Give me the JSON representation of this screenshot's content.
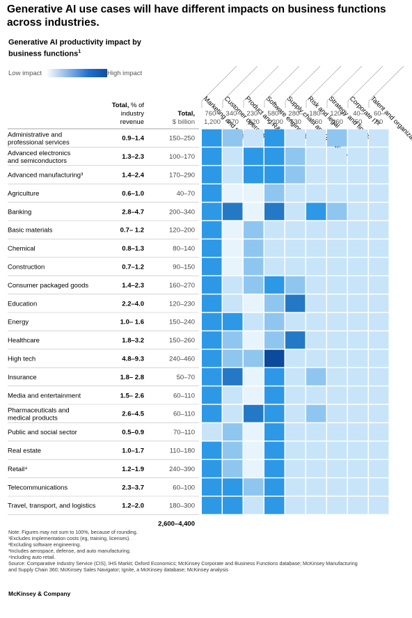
{
  "title": "Generative AI use cases will have different impacts on business functions across industries.",
  "subtitle": "Generative AI productivity impact by business functions",
  "subtitle_note": "1",
  "legend": {
    "low": "Low impact",
    "high": "High impact",
    "low_color": "#ffffff",
    "high_color": "#134e9d"
  },
  "column_heads": {
    "pct_title": "Total,",
    "pct_rest": "% of",
    "pct_line2": "industry",
    "pct_line3": "revenue",
    "bn_title": "Total,",
    "bn_line2": "$ billion"
  },
  "grand_total": "2,600–4,400",
  "notes": [
    "Note: Figures may not sum to 100%, because of rounding.",
    "¹Excludes implementation costs (eg, training, licenses).",
    "²Excluding software engineering.",
    "³Includes aerospace, defense, and auto manufacturing.",
    "⁴Including auto retail.",
    "Source: Comparative Industry Service (CIS), IHS Markit; Oxford Economics; McKinsey Corporate and Business Functions database; McKinsey Manufacturing",
    "and Supply Chain 360; McKinsey Sales Navigator; Ignite, a McKinsey database; McKinsey analysis"
  ],
  "brand": "McKinsey & Company",
  "chart_data": {
    "type": "heatmap",
    "value_scale": "relative impact level 0 (low) to 5 (high), estimated from cell shading",
    "functions": [
      {
        "name": "Marketing and sales",
        "total_top": "760–",
        "total_bottom": "1,200"
      },
      {
        "name": "Customer operations",
        "total_top": "340–",
        "total_bottom": "470"
      },
      {
        "name": "Product and R&D",
        "total_top": "230–",
        "total_bottom": "420"
      },
      {
        "name": "Software engineering",
        "total_top": "580–",
        "total_bottom": "1,200"
      },
      {
        "name": "Supply chain and operations",
        "total_top": "280–",
        "total_bottom": "530"
      },
      {
        "name": "Risk and legal",
        "total_top": "180–",
        "total_bottom": "260"
      },
      {
        "name": "Strategy and finance",
        "total_top": "120–",
        "total_bottom": "260"
      },
      {
        "name": "Corporate IT²",
        "total_top": "40–",
        "total_bottom": "50"
      },
      {
        "name": "Talent and organization",
        "total_top": "60–",
        "total_bottom": "90"
      }
    ],
    "industries": [
      {
        "name": "Administrative and professional services",
        "line1": "Administrative and",
        "line2": "professional services",
        "pct": "0.9–1.4",
        "bn": "150–250",
        "impact": [
          3,
          2,
          1,
          3,
          1,
          1,
          2,
          1,
          1
        ]
      },
      {
        "name": "Advanced electronics and semiconductors",
        "line1": "Advanced electronics",
        "line2": "and semiconductors",
        "pct": "1.3–2.3",
        "bn": "100–170",
        "impact": [
          3,
          1,
          3,
          3,
          2,
          1,
          1,
          1,
          1
        ]
      },
      {
        "name": "Advanced manufacturing³",
        "line1": "Advanced manufacturing³",
        "line2": "",
        "pct": "1.4–2.4",
        "bn": "170–290",
        "impact": [
          3,
          1,
          3,
          3,
          2,
          1,
          1,
          1,
          1
        ]
      },
      {
        "name": "Agriculture",
        "line1": "Agriculture",
        "line2": "",
        "pct": "0.6–1.0",
        "bn": "40–70",
        "impact": [
          3,
          0,
          0,
          2,
          1,
          1,
          1,
          1,
          1
        ]
      },
      {
        "name": "Banking",
        "line1": "Banking",
        "line2": "",
        "pct": "2.8–4.7",
        "bn": "200–340",
        "impact": [
          3,
          4,
          0,
          4,
          1,
          3,
          2,
          1,
          1
        ]
      },
      {
        "name": "Basic materials",
        "line1": "Basic materials",
        "line2": "",
        "pct": "0.7– 1.2",
        "bn": "120–200",
        "impact": [
          3,
          0,
          2,
          1,
          1,
          1,
          1,
          1,
          1
        ]
      },
      {
        "name": "Chemical",
        "line1": "Chemical",
        "line2": "",
        "pct": "0.8–1.3",
        "bn": "80–140",
        "impact": [
          3,
          0,
          2,
          1,
          1,
          1,
          1,
          1,
          1
        ]
      },
      {
        "name": "Construction",
        "line1": "Construction",
        "line2": "",
        "pct": "0.7–1.2",
        "bn": "90–150",
        "impact": [
          3,
          0,
          2,
          1,
          1,
          1,
          1,
          1,
          1
        ]
      },
      {
        "name": "Consumer packaged goods",
        "line1": "Consumer packaged goods",
        "line2": "",
        "pct": "1.4–2.3",
        "bn": "160–270",
        "impact": [
          3,
          1,
          2,
          3,
          2,
          1,
          1,
          1,
          1
        ]
      },
      {
        "name": "Education",
        "line1": "Education",
        "line2": "",
        "pct": "2.2–4.0",
        "bn": "120–230",
        "impact": [
          3,
          1,
          0,
          2,
          4,
          1,
          1,
          1,
          1
        ]
      },
      {
        "name": "Energy",
        "line1": "Energy",
        "line2": "",
        "pct": "1.0– 1.6",
        "bn": "150–240",
        "impact": [
          3,
          3,
          1,
          2,
          1,
          1,
          1,
          1,
          1
        ]
      },
      {
        "name": "Healthcare",
        "line1": "Healthcare",
        "line2": "",
        "pct": "1.8–3.2",
        "bn": "150–260",
        "impact": [
          3,
          2,
          0,
          2,
          4,
          1,
          1,
          1,
          1
        ]
      },
      {
        "name": "High tech",
        "line1": "High tech",
        "line2": "",
        "pct": "4.8–9.3",
        "bn": "240–460",
        "impact": [
          3,
          2,
          2,
          5,
          1,
          1,
          1,
          1,
          1
        ]
      },
      {
        "name": "Insurance",
        "line1": "Insurance",
        "line2": "",
        "pct": "1.8– 2.8",
        "bn": "50–70",
        "impact": [
          3,
          4,
          0,
          3,
          1,
          2,
          1,
          1,
          1
        ]
      },
      {
        "name": "Media and entertainment",
        "line1": "Media and entertainment",
        "line2": "",
        "pct": "1.5– 2.6",
        "bn": "60–110",
        "impact": [
          3,
          1,
          0,
          3,
          1,
          1,
          1,
          1,
          1
        ]
      },
      {
        "name": "Pharmaceuticals and medical products",
        "line1": "Pharmaceuticals and",
        "line2": "medical products",
        "pct": "2.6–4.5",
        "bn": "60–110",
        "impact": [
          3,
          1,
          4,
          3,
          1,
          2,
          1,
          1,
          1
        ]
      },
      {
        "name": "Public and social sector",
        "line1": "Public and social sector",
        "line2": "",
        "pct": "0.5–0.9",
        "bn": "70–110",
        "impact": [
          1,
          2,
          0,
          3,
          1,
          1,
          1,
          1,
          1
        ]
      },
      {
        "name": "Real estate",
        "line1": "Real estate",
        "line2": "",
        "pct": "1.0–1.7",
        "bn": "110–180",
        "impact": [
          3,
          2,
          0,
          3,
          1,
          1,
          1,
          1,
          1
        ]
      },
      {
        "name": "Retail⁴",
        "line1": "Retail⁴",
        "line2": "",
        "pct": "1.2–1.9",
        "bn": "240–390",
        "impact": [
          3,
          2,
          0,
          3,
          1,
          1,
          1,
          1,
          1
        ]
      },
      {
        "name": "Telecommunications",
        "line1": "Telecommunications",
        "line2": "",
        "pct": "2.3–3.7",
        "bn": "60–100",
        "impact": [
          3,
          3,
          2,
          3,
          1,
          1,
          1,
          1,
          1
        ]
      },
      {
        "name": "Travel, transport, and logistics",
        "line1": "Travel, transport, and logistics",
        "line2": "",
        "pct": "1.2–2.0",
        "bn": "180–300",
        "impact": [
          3,
          3,
          1,
          3,
          1,
          1,
          1,
          1,
          1
        ]
      }
    ],
    "colors": {
      "0": "#e8f4fc",
      "1": "#c8e4f9",
      "2": "#8fc6f0",
      "3": "#2d98e6",
      "4": "#2479c6",
      "5": "#0b4a9c"
    }
  }
}
